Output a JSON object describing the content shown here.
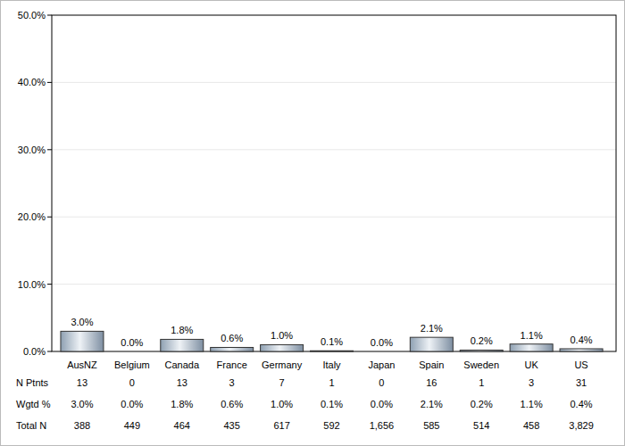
{
  "chart_data": {
    "type": "bar",
    "categories": [
      "AusNZ",
      "Belgium",
      "Canada",
      "France",
      "Germany",
      "Italy",
      "Japan",
      "Spain",
      "Sweden",
      "UK",
      "US"
    ],
    "values": [
      3.0,
      0.0,
      1.8,
      0.6,
      1.0,
      0.1,
      0.0,
      2.1,
      0.2,
      1.1,
      0.4
    ],
    "value_labels": [
      "3.0%",
      "0.0%",
      "1.8%",
      "0.6%",
      "1.0%",
      "0.1%",
      "0.0%",
      "2.1%",
      "0.2%",
      "1.1%",
      "0.4%"
    ],
    "data_labels": true,
    "ylim": [
      0,
      50
    ],
    "yticks": [
      {
        "value": 0,
        "label": "0.0%"
      },
      {
        "value": 10,
        "label": "10.0%"
      },
      {
        "value": 20,
        "label": "20.0%"
      },
      {
        "value": 30,
        "label": "30.0%"
      },
      {
        "value": 40,
        "label": "40.0%"
      },
      {
        "value": 50,
        "label": "50.0%"
      }
    ],
    "grid": true,
    "table": {
      "rows": [
        {
          "label": "N Ptnts",
          "cells": [
            "13",
            "0",
            "13",
            "3",
            "7",
            "1",
            "0",
            "16",
            "1",
            "3",
            "31"
          ]
        },
        {
          "label": "Wgtd %",
          "cells": [
            "3.0%",
            "0.0%",
            "1.8%",
            "0.6%",
            "1.0%",
            "0.1%",
            "0.0%",
            "2.1%",
            "0.2%",
            "1.1%",
            "0.4%"
          ]
        },
        {
          "label": "Total N",
          "cells": [
            "388",
            "449",
            "464",
            "435",
            "617",
            "592",
            "1,656",
            "585",
            "514",
            "458",
            "3,829"
          ]
        }
      ]
    }
  }
}
